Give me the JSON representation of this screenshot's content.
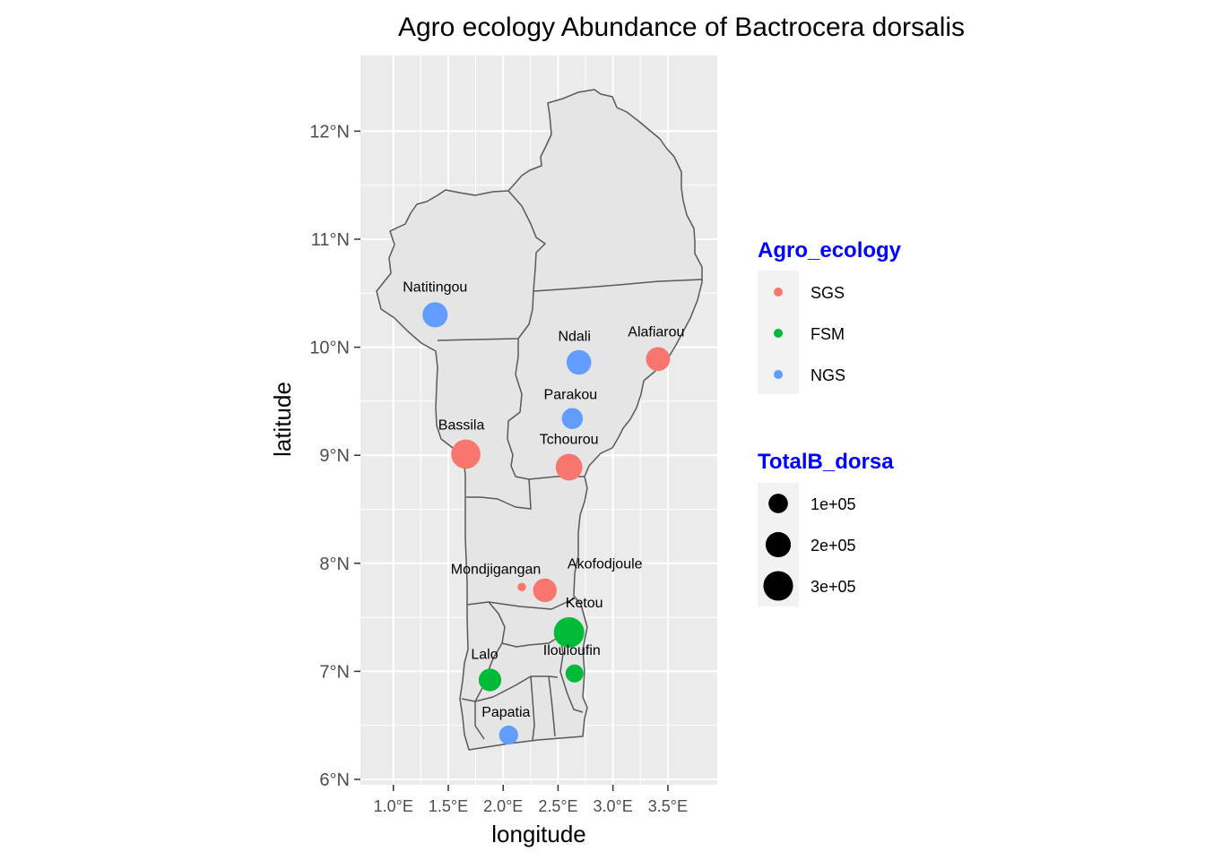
{
  "chart_data": {
    "type": "scatter",
    "title": "Agro ecology Abundance of Bactrocera dorsalis",
    "xlabel": "longitude",
    "ylabel": "latitude",
    "xlim": [
      0.7,
      3.95
    ],
    "ylim": [
      5.95,
      12.7
    ],
    "x_ticks": [
      {
        "value": 1.0,
        "label": "1.0°E"
      },
      {
        "value": 1.5,
        "label": "1.5°E"
      },
      {
        "value": 2.0,
        "label": "2.0°E"
      },
      {
        "value": 2.5,
        "label": "2.5°E"
      },
      {
        "value": 3.0,
        "label": "3.0°E"
      },
      {
        "value": 3.5,
        "label": "3.5°E"
      }
    ],
    "y_ticks": [
      {
        "value": 6,
        "label": "6°N"
      },
      {
        "value": 7,
        "label": "7°N"
      },
      {
        "value": 8,
        "label": "8°N"
      },
      {
        "value": 9,
        "label": "9°N"
      },
      {
        "value": 10,
        "label": "10°N"
      },
      {
        "value": 11,
        "label": "11°N"
      },
      {
        "value": 12,
        "label": "12°N"
      }
    ],
    "grid": true,
    "legend_placement": "right",
    "color_legend": {
      "title": "Agro_ecology",
      "title_color": "#0000ff",
      "items": [
        {
          "label": "SGS",
          "color": "#f8766d"
        },
        {
          "label": "FSM",
          "color": "#00ba38"
        },
        {
          "label": "NGS",
          "color": "#619cff"
        }
      ]
    },
    "size_legend": {
      "title": "TotalB_dorsa",
      "title_color": "#0000ff",
      "items": [
        {
          "label": "1e+05",
          "value": 100000
        },
        {
          "label": "2e+05",
          "value": 200000
        },
        {
          "label": "3e+05",
          "value": 300000
        }
      ]
    },
    "points": [
      {
        "name": "Natitingou",
        "lon": 1.38,
        "lat": 10.3,
        "group": "NGS",
        "total": 200000
      },
      {
        "name": "Ndali",
        "lon": 2.69,
        "lat": 9.86,
        "group": "NGS",
        "total": 190000
      },
      {
        "name": "Alafiarou",
        "lon": 3.41,
        "lat": 9.89,
        "group": "SGS",
        "total": 175000
      },
      {
        "name": "Parakou",
        "lon": 2.63,
        "lat": 9.34,
        "group": "NGS",
        "total": 125000
      },
      {
        "name": "Bassila",
        "lon": 1.66,
        "lat": 9.01,
        "group": "SGS",
        "total": 290000
      },
      {
        "name": "Tchourou",
        "lon": 2.6,
        "lat": 8.89,
        "group": "SGS",
        "total": 230000
      },
      {
        "name": "Mondjigangan",
        "lon": 2.17,
        "lat": 7.78,
        "group": "SGS",
        "total": 5000
      },
      {
        "name": "Akofodjoule",
        "lon": 2.38,
        "lat": 7.75,
        "group": "SGS",
        "total": 170000
      },
      {
        "name": "Ketou",
        "lon": 2.6,
        "lat": 7.36,
        "group": "FSM",
        "total": 320000
      },
      {
        "name": "Ilouloufin",
        "lon": 2.65,
        "lat": 6.98,
        "group": "FSM",
        "total": 80000
      },
      {
        "name": "Lalo",
        "lon": 1.88,
        "lat": 6.92,
        "group": "FSM",
        "total": 150000
      },
      {
        "name": "Papatia",
        "lon": 2.05,
        "lat": 6.41,
        "group": "NGS",
        "total": 95000
      }
    ]
  }
}
